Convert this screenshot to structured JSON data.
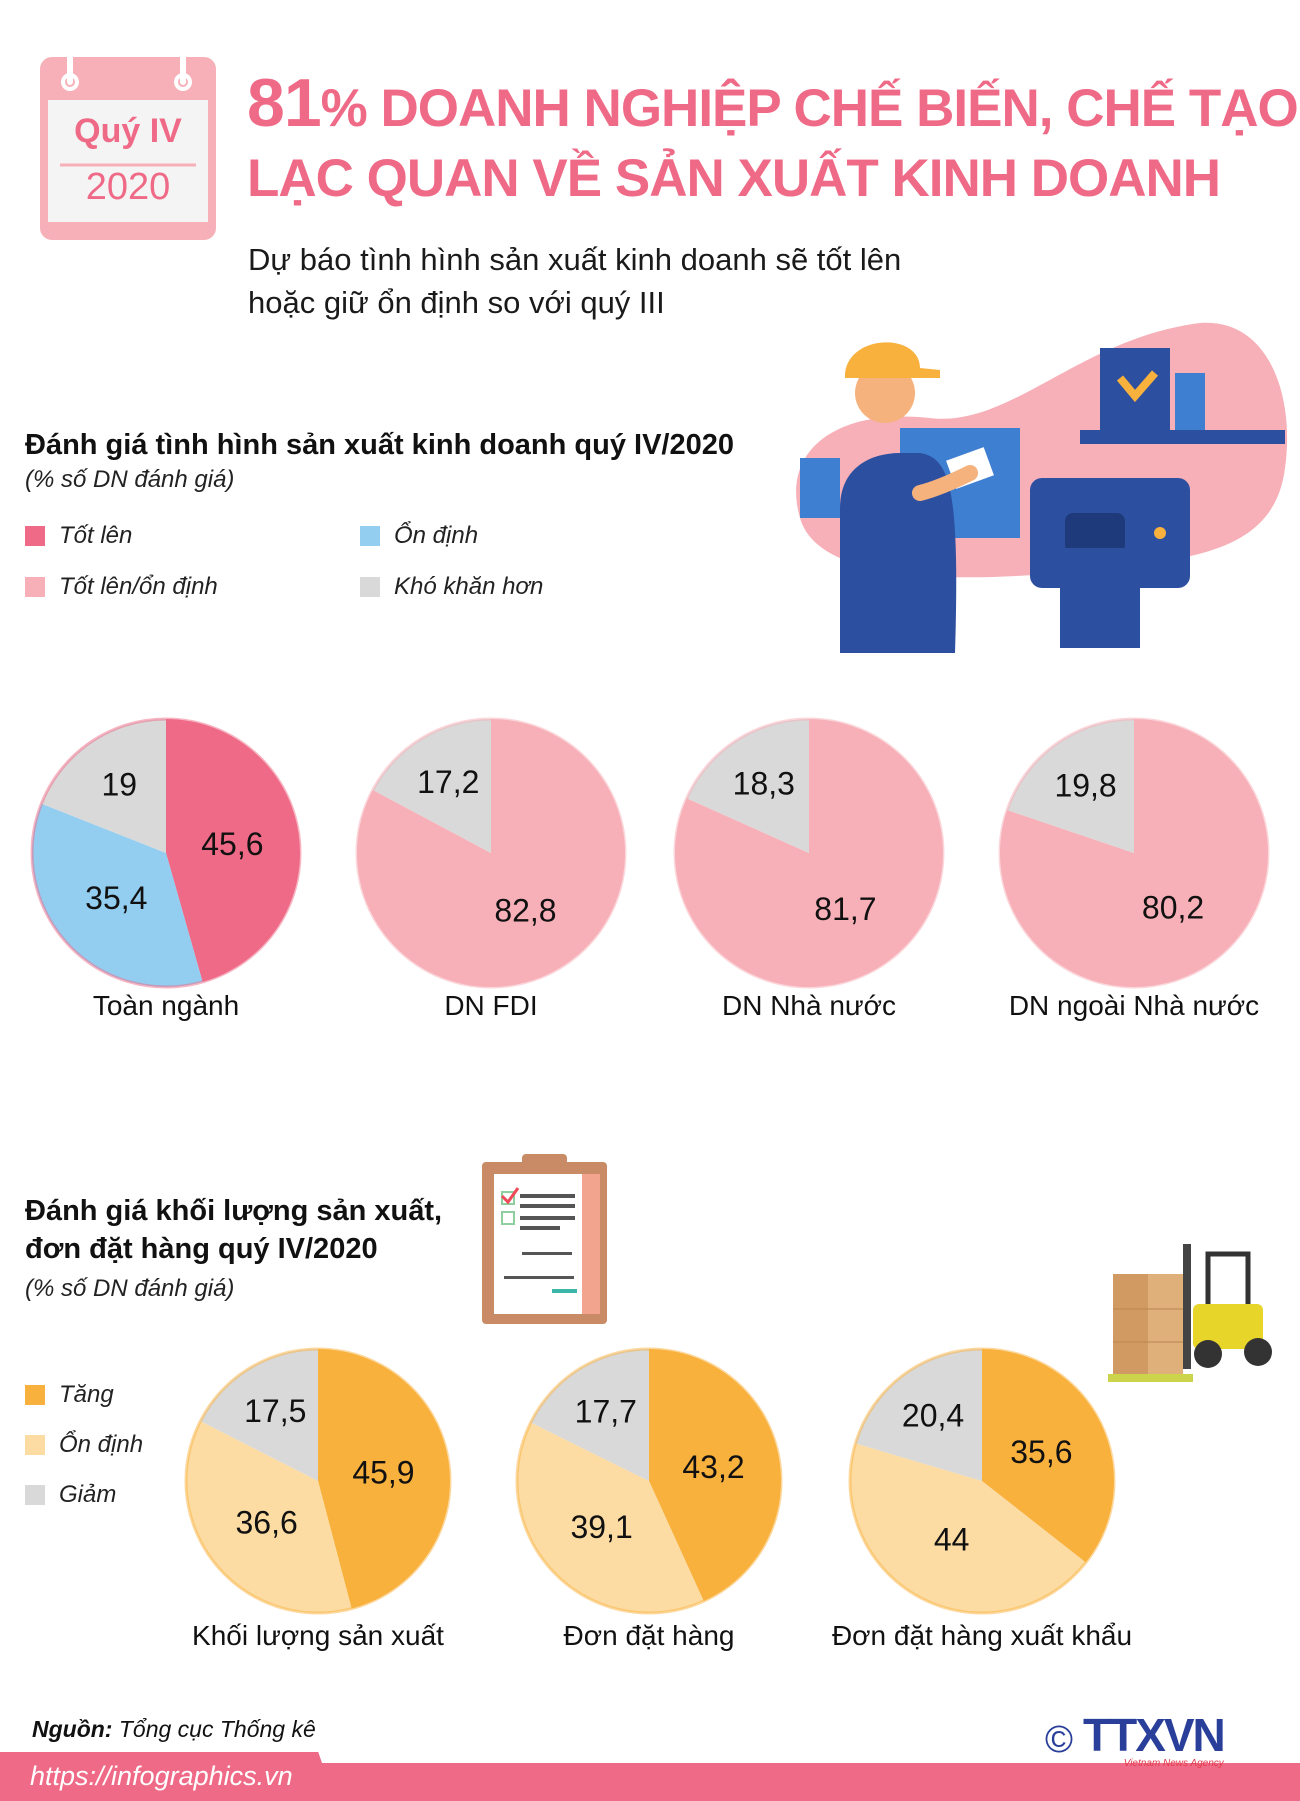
{
  "calendar": {
    "quarter": "Quý IV",
    "year": "2020"
  },
  "header": {
    "title_number": "81",
    "title_line1": "% DOANH NGHIỆP CHẾ BIẾN, CHẾ TẠO",
    "title_line2": "LẠC QUAN VỀ SẢN XUẤT KINH DOANH",
    "subtitle_line1": "Dự báo tình hình sản xuất kinh doanh sẽ tốt lên",
    "subtitle_line2": "hoặc giữ ổn định so với quý III"
  },
  "section1": {
    "heading": "Đánh giá tình hình sản xuất kinh doanh quý IV/2020",
    "unit": "(% số DN đánh giá)",
    "legend": [
      {
        "label": "Tốt lên",
        "color": "#ef6a86"
      },
      {
        "label": "Ổn định",
        "color": "#93cdf0"
      },
      {
        "label": "Tốt lên/ổn định",
        "color": "#f7b0b8"
      },
      {
        "label": "Khó khăn hơn",
        "color": "#d9d9d9"
      }
    ]
  },
  "section2": {
    "heading_line1": "Đánh giá khối lượng sản xuất,",
    "heading_line2": "đơn đặt hàng quý IV/2020",
    "unit": "(% số DN đánh giá)",
    "legend": [
      {
        "label": "Tăng",
        "color": "#f9b13d"
      },
      {
        "label": "Ổn định",
        "color": "#fcdca3"
      },
      {
        "label": "Giảm",
        "color": "#d9d9d9"
      }
    ]
  },
  "chart_data": [
    {
      "type": "pie",
      "title": "Toàn ngành",
      "labels": [
        "Tốt lên",
        "Ổn định",
        "Khó khăn hơn"
      ],
      "values": [
        45.6,
        35.4,
        19
      ],
      "value_labels": [
        "45,6",
        "35,4",
        "19"
      ],
      "colors": [
        "#ef6a86",
        "#93cdf0",
        "#d9d9d9"
      ]
    },
    {
      "type": "pie",
      "title": "DN FDI",
      "labels": [
        "Tốt lên/ổn định",
        "Khó khăn hơn"
      ],
      "values": [
        82.8,
        17.2
      ],
      "value_labels": [
        "82,8",
        "17,2"
      ],
      "colors": [
        "#f7b0b8",
        "#d9d9d9"
      ]
    },
    {
      "type": "pie",
      "title": "DN Nhà nước",
      "labels": [
        "Tốt lên/ổn định",
        "Khó khăn hơn"
      ],
      "values": [
        81.7,
        18.3
      ],
      "value_labels": [
        "81,7",
        "18,3"
      ],
      "colors": [
        "#f7b0b8",
        "#d9d9d9"
      ]
    },
    {
      "type": "pie",
      "title": "DN ngoài Nhà nước",
      "labels": [
        "Tốt lên/ổn định",
        "Khó khăn hơn"
      ],
      "values": [
        80.2,
        19.8
      ],
      "value_labels": [
        "80,2",
        "19,8"
      ],
      "colors": [
        "#f7b0b8",
        "#d9d9d9"
      ]
    },
    {
      "type": "pie",
      "title": "Khối lượng sản xuất",
      "labels": [
        "Tăng",
        "Ổn định",
        "Giảm"
      ],
      "values": [
        45.9,
        36.6,
        17.5
      ],
      "value_labels": [
        "45,9",
        "36,6",
        "17,5"
      ],
      "colors": [
        "#f9b13d",
        "#fcdca3",
        "#d9d9d9"
      ]
    },
    {
      "type": "pie",
      "title": "Đơn đặt hàng",
      "labels": [
        "Tăng",
        "Ổn định",
        "Giảm"
      ],
      "values": [
        43.2,
        39.1,
        17.7
      ],
      "value_labels": [
        "43,2",
        "39,1",
        "17,7"
      ],
      "colors": [
        "#f9b13d",
        "#fcdca3",
        "#d9d9d9"
      ]
    },
    {
      "type": "pie",
      "title": "Đơn đặt hàng xuất khẩu",
      "labels": [
        "Tăng",
        "Ổn định",
        "Giảm"
      ],
      "values": [
        35.6,
        44,
        20.4
      ],
      "value_labels": [
        "35,6",
        "44",
        "20,4"
      ],
      "colors": [
        "#f9b13d",
        "#fcdca3",
        "#d9d9d9"
      ]
    }
  ],
  "footer": {
    "source_label": "Nguồn:",
    "source_text": "Tổng cục Thống kê",
    "url": "https://infographics.vn",
    "copyright": "©",
    "logo": "TTXVN",
    "logo_sub": "Vietnam News Agency"
  }
}
